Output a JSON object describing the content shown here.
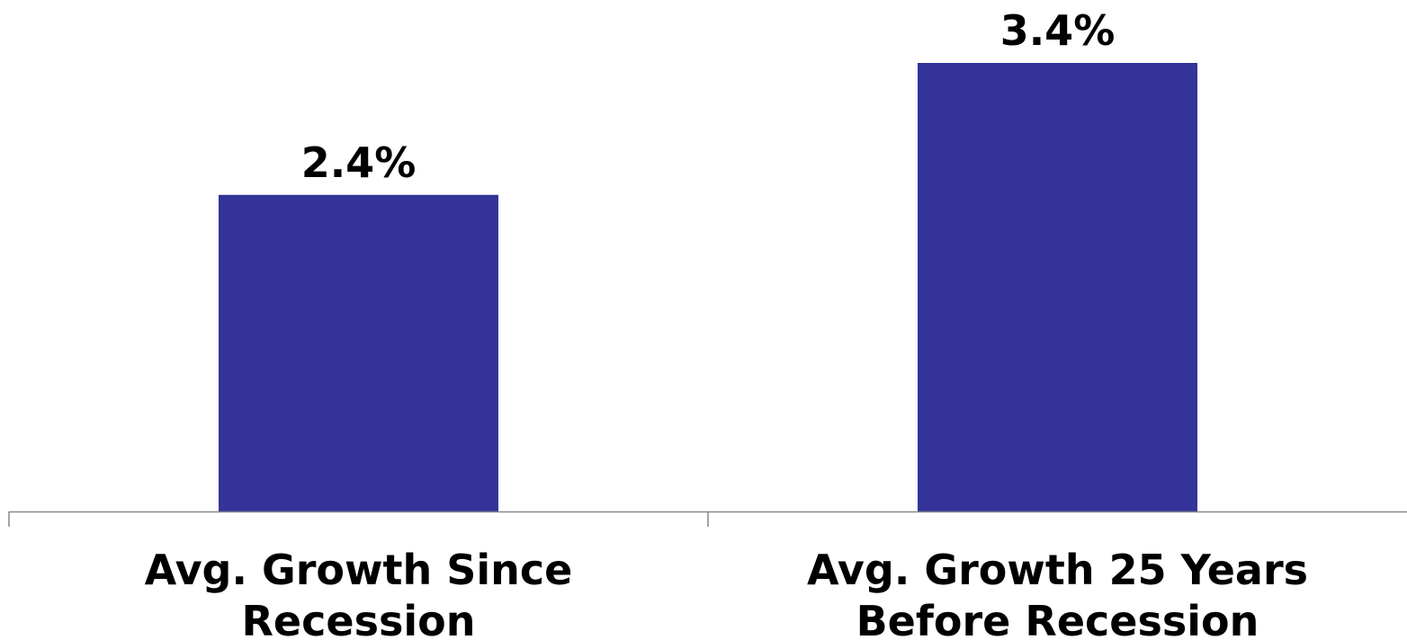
{
  "chart_data": {
    "type": "bar",
    "categories": [
      [
        "Avg. Growth Since",
        "Recession"
      ],
      [
        "Avg. Growth 25 Years",
        "Before Recession"
      ]
    ],
    "values": [
      2.4,
      3.4
    ],
    "data_labels": [
      "2.4%",
      "3.4%"
    ],
    "bar_color": "#333399",
    "axis_color": "#888888",
    "ylim": [
      0,
      3.4
    ],
    "title": "",
    "xlabel": "",
    "ylabel": "",
    "grid": false,
    "legend": "none"
  }
}
